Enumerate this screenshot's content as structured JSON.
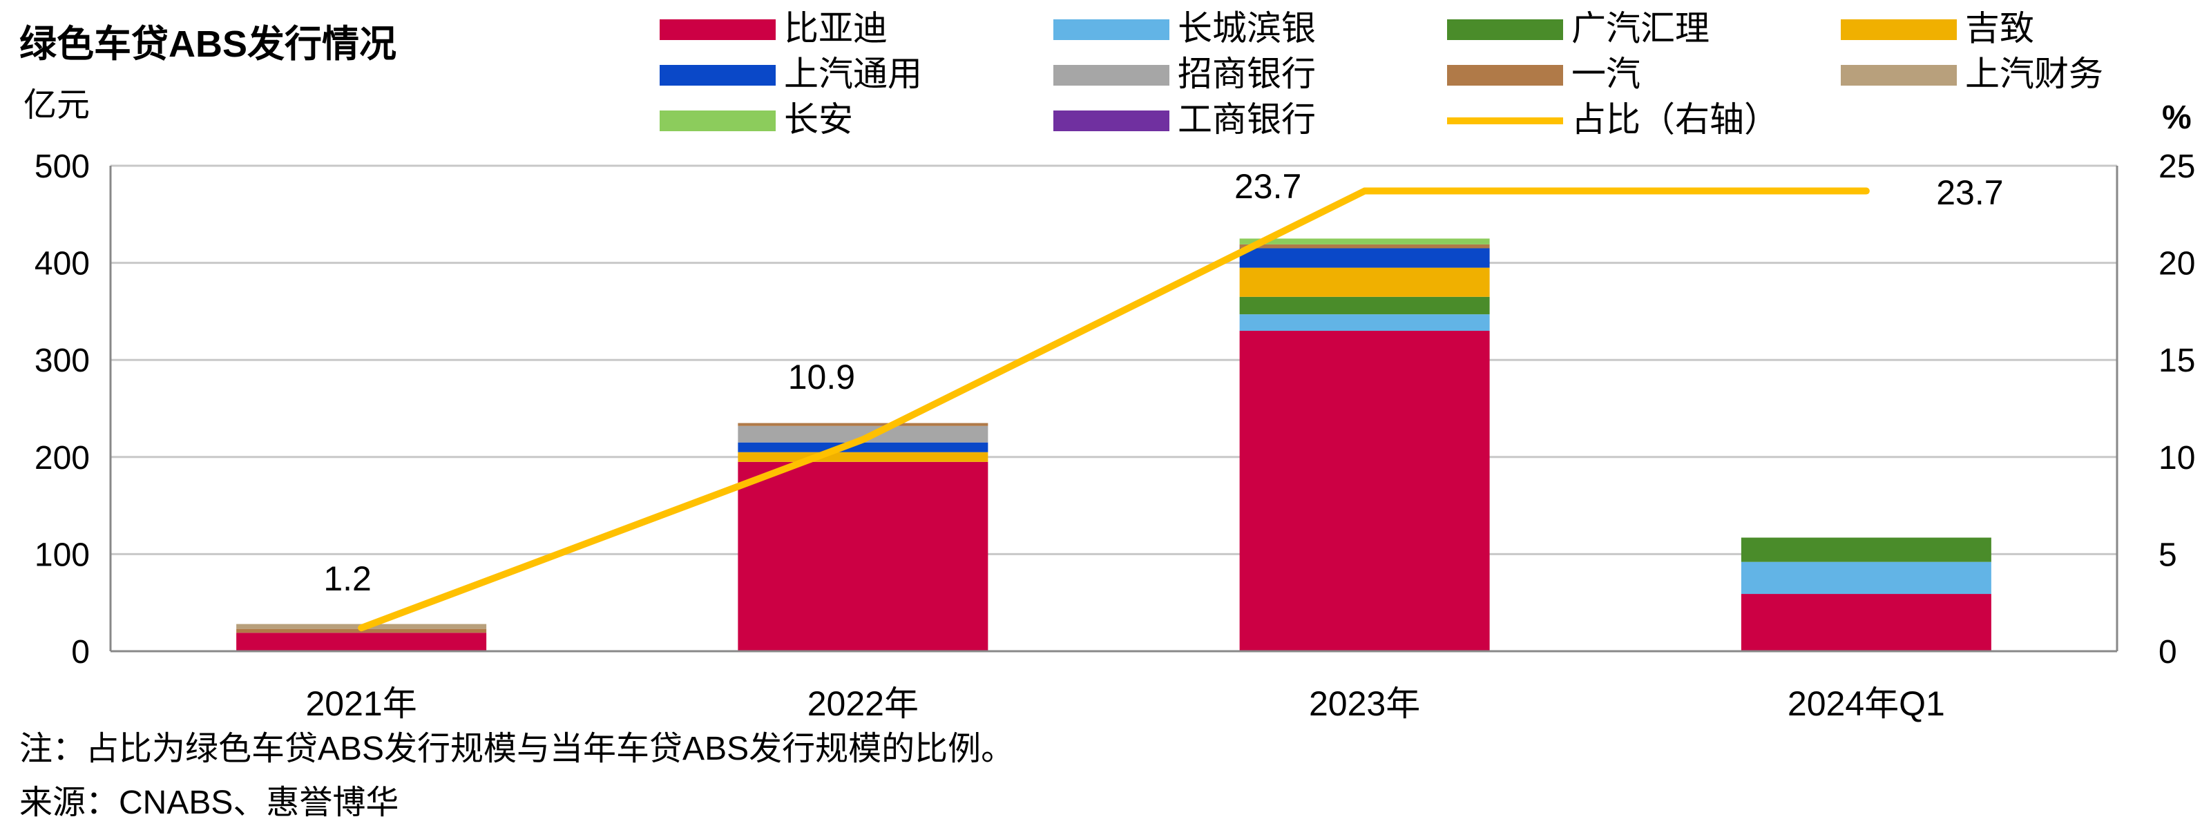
{
  "chart_data": {
    "type": "bar",
    "stacked": true,
    "title": "绿色车贷ABS发行情况",
    "y_left_unit": "亿元",
    "y_right_unit": "%",
    "ylim_left": [
      0,
      500
    ],
    "ylim_right": [
      0,
      25
    ],
    "yticks_left": [
      "0",
      "100",
      "200",
      "300",
      "400",
      "500"
    ],
    "yticks_right": [
      "0",
      "5",
      "10",
      "15",
      "20",
      "25"
    ],
    "categories": [
      "2021年",
      "2022年",
      "2023年",
      "2024年Q1"
    ],
    "grid": true,
    "legend_position": "top",
    "series": [
      {
        "name": "比亚迪",
        "color": "#cc0044",
        "values": [
          19,
          195,
          330,
          59
        ]
      },
      {
        "name": "长城滨银",
        "color": "#62b4e6",
        "values": [
          0,
          0,
          17,
          33
        ]
      },
      {
        "name": "广汽汇理",
        "color": "#4a8c2a",
        "values": [
          0,
          0,
          18,
          25
        ]
      },
      {
        "name": "吉致",
        "color": "#f0b000",
        "values": [
          0,
          10,
          30,
          0
        ]
      },
      {
        "name": "上汽通用",
        "color": "#0a48c8",
        "values": [
          0,
          10,
          20,
          0
        ]
      },
      {
        "name": "招商银行",
        "color": "#a6a6a6",
        "values": [
          0,
          17,
          0,
          0
        ]
      },
      {
        "name": "一汽",
        "color": "#b07a48",
        "values": [
          4,
          3,
          4,
          0
        ]
      },
      {
        "name": "上汽财务",
        "color": "#b8a07c",
        "values": [
          5,
          0,
          0,
          0
        ]
      },
      {
        "name": "长安",
        "color": "#8ccc5c",
        "values": [
          0,
          0,
          6,
          0
        ]
      },
      {
        "name": "工商银行",
        "color": "#7030a0",
        "values": [
          0,
          0,
          0,
          0
        ]
      }
    ],
    "line": {
      "name": "占比（右轴）",
      "color": "#ffc000",
      "values": [
        1.2,
        10.9,
        23.7,
        23.7
      ],
      "labels": [
        "1.2",
        "10.9",
        "23.7",
        "23.7"
      ]
    },
    "notes": [
      "注：占比为绿色车贷ABS发行规模与当年车贷ABS发行规模的比例。",
      "来源：CNABS、惠誉博华"
    ]
  }
}
